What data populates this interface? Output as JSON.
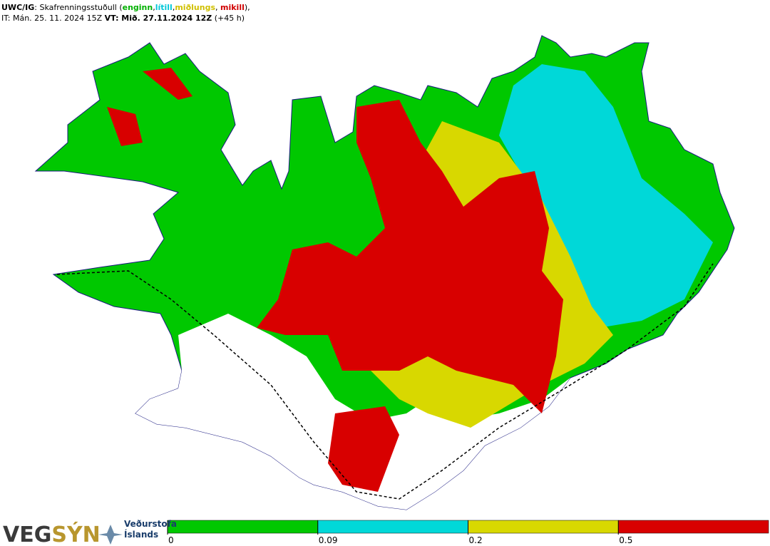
{
  "header": {
    "line1": [
      {
        "text": "UWC/IG",
        "bold": true
      },
      {
        "text": ": Skafrenningsstuðull ("
      },
      {
        "text": "enginn",
        "bold": true,
        "color": "#00b000"
      },
      {
        "text": ","
      },
      {
        "text": "lítill",
        "bold": true,
        "color": "#00c8d8"
      },
      {
        "text": ","
      },
      {
        "text": "miðlungs",
        "bold": true,
        "color": "#d0c000"
      },
      {
        "text": ", "
      },
      {
        "text": "mikill",
        "bold": true,
        "color": "#d00000"
      },
      {
        "text": "),"
      }
    ],
    "line2": [
      {
        "text": "IT: Mán. 25. 11. 2024 15Z "
      },
      {
        "text": "VT: Mið. 27.11.2024 12Z",
        "bold": true
      },
      {
        "text": " (+45 h)"
      }
    ]
  },
  "legend": {
    "thresholds": [
      0,
      0.09,
      0.2,
      0.5
    ],
    "colors": [
      "#00c800",
      "#00d8d8",
      "#d8d800",
      "#d80000"
    ]
  },
  "logos": {
    "vegsyn": [
      {
        "text": "VEG",
        "color": "#3a3a3a"
      },
      {
        "text": "SÝN",
        "color": "#b8962e"
      }
    ],
    "vedurstofa": [
      "Veðurstofa",
      "Íslands"
    ]
  }
}
